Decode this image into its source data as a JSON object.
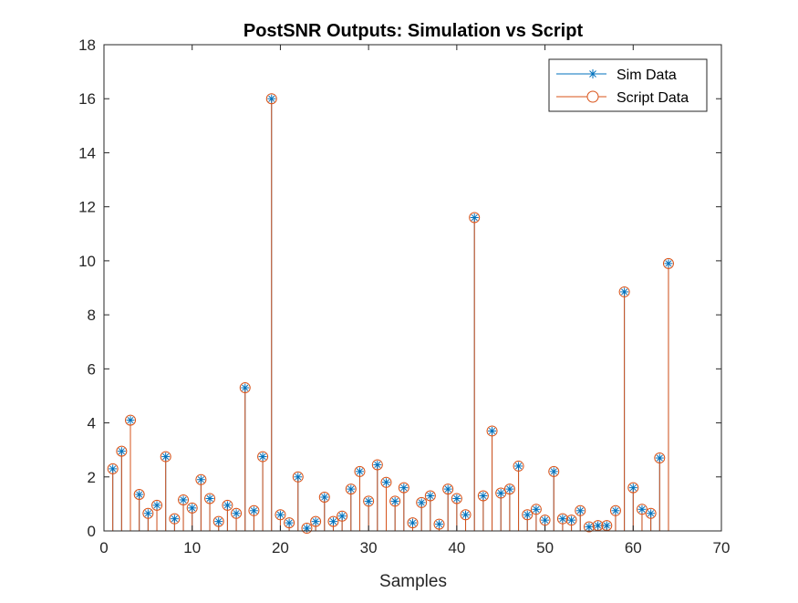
{
  "chart_data": {
    "type": "stem",
    "title": "PostSNR Outputs: Simulation vs Script",
    "xlabel": "Samples",
    "ylabel": "",
    "xlim": [
      0,
      70
    ],
    "ylim": [
      0,
      18
    ],
    "xticks": [
      0,
      10,
      20,
      30,
      40,
      50,
      60,
      70
    ],
    "yticks": [
      0,
      2,
      4,
      6,
      8,
      10,
      12,
      14,
      16,
      18
    ],
    "grid": false,
    "legend_position": "top-right",
    "x": [
      1,
      2,
      3,
      4,
      5,
      6,
      7,
      8,
      9,
      10,
      11,
      12,
      13,
      14,
      15,
      16,
      17,
      18,
      19,
      20,
      21,
      22,
      23,
      24,
      25,
      26,
      27,
      28,
      29,
      30,
      31,
      32,
      33,
      34,
      35,
      36,
      37,
      38,
      39,
      40,
      41,
      42,
      43,
      44,
      45,
      46,
      47,
      48,
      49,
      50,
      51,
      52,
      53,
      54,
      55,
      56,
      57,
      58,
      59,
      60,
      61,
      62,
      63,
      64
    ],
    "series": [
      {
        "name": "Sim Data",
        "color": "#0072BD",
        "marker": "asterisk",
        "values": [
          2.3,
          2.95,
          4.1,
          1.35,
          0.65,
          0.95,
          2.75,
          0.45,
          1.15,
          0.85,
          1.9,
          1.2,
          0.35,
          0.95,
          0.65,
          5.3,
          0.75,
          2.75,
          16.0,
          0.6,
          0.3,
          2.0,
          0.1,
          0.35,
          1.25,
          0.35,
          0.55,
          1.55,
          2.2,
          1.1,
          2.45,
          1.8,
          1.1,
          1.6,
          0.3,
          1.05,
          1.3,
          0.25,
          1.55,
          1.2,
          0.6,
          11.6,
          1.3,
          3.7,
          1.4,
          1.55,
          2.4,
          0.6,
          0.8,
          0.4,
          2.2,
          0.45,
          0.4,
          0.75,
          0.15,
          0.2,
          0.2,
          0.75,
          8.85,
          1.6,
          0.8,
          0.65,
          2.7,
          9.9
        ]
      },
      {
        "name": "Script Data",
        "color": "#D95319",
        "marker": "circle",
        "values": [
          2.3,
          2.95,
          4.1,
          1.35,
          0.65,
          0.95,
          2.75,
          0.45,
          1.15,
          0.85,
          1.9,
          1.2,
          0.35,
          0.95,
          0.65,
          5.3,
          0.75,
          2.75,
          16.0,
          0.6,
          0.3,
          2.0,
          0.1,
          0.35,
          1.25,
          0.35,
          0.55,
          1.55,
          2.2,
          1.1,
          2.45,
          1.8,
          1.1,
          1.6,
          0.3,
          1.05,
          1.3,
          0.25,
          1.55,
          1.2,
          0.6,
          11.6,
          1.3,
          3.7,
          1.4,
          1.55,
          2.4,
          0.6,
          0.8,
          0.4,
          2.2,
          0.45,
          0.4,
          0.75,
          0.15,
          0.2,
          0.2,
          0.75,
          8.85,
          1.6,
          0.8,
          0.65,
          2.7,
          9.9
        ]
      }
    ]
  }
}
